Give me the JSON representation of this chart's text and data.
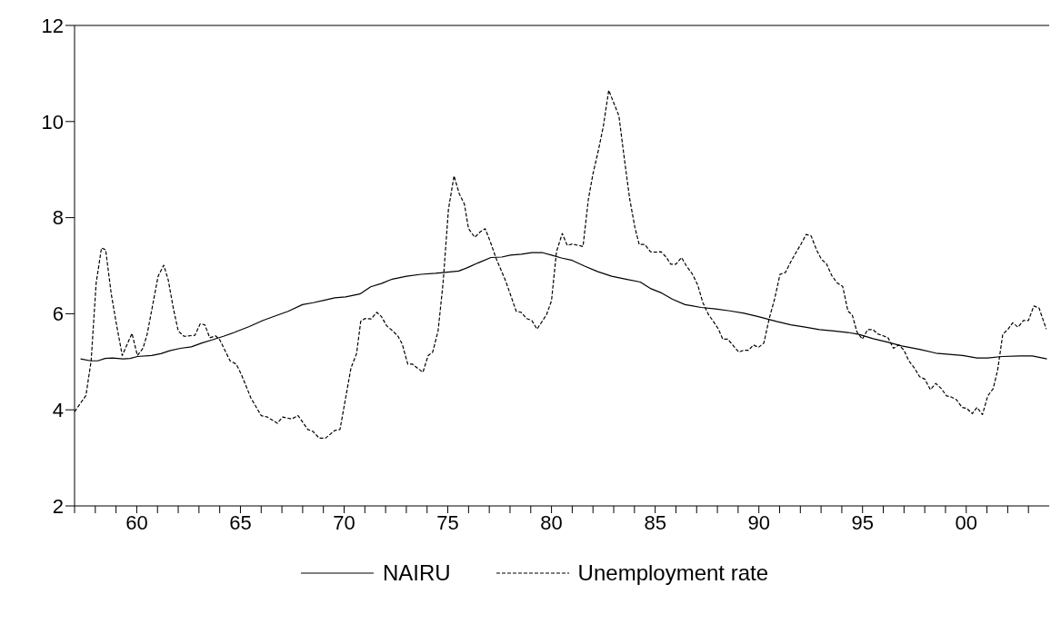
{
  "chart_data": {
    "type": "line",
    "xlim": [
      1957,
      2004
    ],
    "ylim": [
      2,
      12
    ],
    "yticks": [
      2,
      4,
      6,
      8,
      10,
      12
    ],
    "xticks": [
      {
        "value": 1957,
        "label": null
      },
      {
        "value": 1958,
        "label": null
      },
      {
        "value": 1959,
        "label": null
      },
      {
        "value": 1960,
        "label": "60"
      },
      {
        "value": 1961,
        "label": null
      },
      {
        "value": 1962,
        "label": null
      },
      {
        "value": 1963,
        "label": null
      },
      {
        "value": 1964,
        "label": null
      },
      {
        "value": 1965,
        "label": "65"
      },
      {
        "value": 1966,
        "label": null
      },
      {
        "value": 1967,
        "label": null
      },
      {
        "value": 1968,
        "label": null
      },
      {
        "value": 1969,
        "label": null
      },
      {
        "value": 1970,
        "label": "70"
      },
      {
        "value": 1971,
        "label": null
      },
      {
        "value": 1972,
        "label": null
      },
      {
        "value": 1973,
        "label": null
      },
      {
        "value": 1974,
        "label": null
      },
      {
        "value": 1975,
        "label": "75"
      },
      {
        "value": 1976,
        "label": null
      },
      {
        "value": 1977,
        "label": null
      },
      {
        "value": 1978,
        "label": null
      },
      {
        "value": 1979,
        "label": null
      },
      {
        "value": 1980,
        "label": "80"
      },
      {
        "value": 1981,
        "label": null
      },
      {
        "value": 1982,
        "label": null
      },
      {
        "value": 1983,
        "label": null
      },
      {
        "value": 1984,
        "label": null
      },
      {
        "value": 1985,
        "label": "85"
      },
      {
        "value": 1986,
        "label": null
      },
      {
        "value": 1987,
        "label": null
      },
      {
        "value": 1988,
        "label": null
      },
      {
        "value": 1989,
        "label": null
      },
      {
        "value": 1990,
        "label": "90"
      },
      {
        "value": 1991,
        "label": null
      },
      {
        "value": 1992,
        "label": null
      },
      {
        "value": 1993,
        "label": null
      },
      {
        "value": 1994,
        "label": null
      },
      {
        "value": 1995,
        "label": "95"
      },
      {
        "value": 1996,
        "label": null
      },
      {
        "value": 1997,
        "label": null
      },
      {
        "value": 1998,
        "label": null
      },
      {
        "value": 1999,
        "label": null
      },
      {
        "value": 2000,
        "label": "00"
      },
      {
        "value": 2001,
        "label": null
      },
      {
        "value": 2002,
        "label": null
      },
      {
        "value": 2003,
        "label": null
      }
    ],
    "legend": "bottom",
    "marker": "none",
    "series": [
      {
        "name": "NAIRU",
        "color": "#000000",
        "line_style": "solid",
        "x": [
          1957.29,
          1957.78,
          1958.12,
          1958.47,
          1958.82,
          1959.34,
          1959.68,
          1960.03,
          1960.72,
          1961.16,
          1961.59,
          1962.1,
          1962.63,
          1963.14,
          1963.66,
          1964.18,
          1964.7,
          1965.4,
          1966.09,
          1966.78,
          1967.3,
          1967.99,
          1968.51,
          1969.03,
          1969.55,
          1970.07,
          1970.76,
          1971.28,
          1971.8,
          1972.32,
          1973.01,
          1973.71,
          1974.4,
          1975.1,
          1975.53,
          1975.95,
          1976.47,
          1977.08,
          1977.6,
          1978.02,
          1978.54,
          1979.06,
          1979.58,
          1980.0,
          1980.48,
          1981.0,
          1981.6,
          1982.21,
          1982.9,
          1983.59,
          1984.28,
          1984.8,
          1985.32,
          1985.84,
          1986.44,
          1987.22,
          1987.91,
          1988.6,
          1989.29,
          1989.98,
          1990.85,
          1991.54,
          1992.23,
          1992.92,
          1993.61,
          1994.3,
          1994.82,
          1995.51,
          1996.2,
          1996.89,
          1997.75,
          1998.53,
          1999.31,
          1999.83,
          2000.52,
          2001.04,
          2001.73,
          2002.59,
          2003.19,
          2003.89
        ],
        "values": [
          5.06,
          5.02,
          5.02,
          5.07,
          5.08,
          5.06,
          5.07,
          5.11,
          5.13,
          5.17,
          5.23,
          5.28,
          5.31,
          5.39,
          5.46,
          5.53,
          5.61,
          5.73,
          5.86,
          5.97,
          6.05,
          6.19,
          6.23,
          6.28,
          6.33,
          6.35,
          6.41,
          6.56,
          6.63,
          6.72,
          6.78,
          6.82,
          6.84,
          6.87,
          6.89,
          6.96,
          7.06,
          7.17,
          7.18,
          7.22,
          7.24,
          7.27,
          7.27,
          7.22,
          7.16,
          7.11,
          6.99,
          6.88,
          6.78,
          6.72,
          6.66,
          6.52,
          6.43,
          6.3,
          6.19,
          6.13,
          6.1,
          6.06,
          6.01,
          5.94,
          5.84,
          5.77,
          5.72,
          5.67,
          5.64,
          5.61,
          5.57,
          5.48,
          5.41,
          5.33,
          5.26,
          5.18,
          5.15,
          5.13,
          5.08,
          5.08,
          5.11,
          5.12,
          5.12,
          5.06
        ]
      },
      {
        "name": "Unemployment rate",
        "color": "#000000",
        "line_style": "dashed",
        "x": [
          1957.0,
          1957.55,
          1957.8,
          1958.04,
          1958.3,
          1958.5,
          1958.77,
          1959.0,
          1959.3,
          1959.77,
          1960.03,
          1960.3,
          1960.5,
          1961.03,
          1961.3,
          1961.52,
          1961.76,
          1962.0,
          1962.28,
          1962.8,
          1963.06,
          1963.28,
          1963.52,
          1963.8,
          1964.0,
          1964.5,
          1964.8,
          1965.05,
          1965.5,
          1966.0,
          1966.3,
          1966.78,
          1967.04,
          1967.47,
          1967.78,
          1968.25,
          1968.5,
          1968.8,
          1969.1,
          1969.55,
          1969.8,
          1970.33,
          1970.6,
          1970.8,
          1971.0,
          1971.3,
          1971.57,
          1971.8,
          1972.05,
          1972.35,
          1972.6,
          1972.8,
          1973.07,
          1973.3,
          1973.8,
          1974.05,
          1974.27,
          1974.53,
          1974.77,
          1975.03,
          1975.3,
          1975.55,
          1975.8,
          1976.0,
          1976.3,
          1976.55,
          1976.8,
          1977.04,
          1977.33,
          1977.8,
          1978.3,
          1978.54,
          1978.8,
          1979.05,
          1979.3,
          1979.58,
          1979.76,
          1980.0,
          1980.24,
          1980.52,
          1980.76,
          1981.0,
          1981.52,
          1981.78,
          1982.0,
          1982.25,
          1982.5,
          1982.76,
          1983.02,
          1983.25,
          1983.5,
          1983.77,
          1984.02,
          1984.23,
          1984.5,
          1984.77,
          1985.0,
          1985.28,
          1985.53,
          1985.75,
          1986.0,
          1986.27,
          1986.5,
          1986.8,
          1987.05,
          1987.3,
          1987.56,
          1987.82,
          1988.05,
          1988.26,
          1988.5,
          1988.74,
          1989.03,
          1989.26,
          1989.5,
          1989.74,
          1989.98,
          1990.24,
          1990.5,
          1990.76,
          1991.02,
          1991.28,
          1991.54,
          1991.8,
          1992.02,
          1992.28,
          1992.52,
          1992.78,
          1993.02,
          1993.26,
          1993.52,
          1993.78,
          1994.04,
          1994.3,
          1994.5,
          1994.73,
          1994.99,
          1995.25,
          1995.5,
          1995.73,
          1996.0,
          1996.23,
          1996.49,
          1996.75,
          1997.0,
          1997.23,
          1997.5,
          1997.75,
          1998.0,
          1998.27,
          1998.53,
          1998.8,
          1999.05,
          1999.27,
          1999.53,
          1999.8,
          2000.03,
          2000.29,
          2000.52,
          2000.78,
          2001.04,
          2001.3,
          2001.52,
          2001.76,
          2002.02,
          2002.24,
          2002.5,
          2002.76,
          2003.0,
          2003.26,
          2003.51,
          2003.86
        ],
        "values": [
          3.96,
          4.3,
          5.02,
          6.63,
          7.37,
          7.33,
          6.41,
          5.83,
          5.13,
          5.59,
          5.13,
          5.28,
          5.57,
          6.78,
          7.01,
          6.7,
          6.12,
          5.64,
          5.53,
          5.55,
          5.79,
          5.77,
          5.5,
          5.54,
          5.46,
          5.02,
          4.95,
          4.73,
          4.25,
          3.88,
          3.85,
          3.72,
          3.85,
          3.81,
          3.88,
          3.59,
          3.55,
          3.41,
          3.41,
          3.57,
          3.59,
          4.87,
          5.17,
          5.84,
          5.9,
          5.89,
          6.03,
          5.94,
          5.75,
          5.64,
          5.53,
          5.37,
          4.95,
          4.95,
          4.78,
          5.13,
          5.2,
          5.64,
          6.63,
          8.17,
          8.87,
          8.5,
          8.28,
          7.77,
          7.59,
          7.7,
          7.77,
          7.51,
          7.15,
          6.67,
          6.05,
          6.03,
          5.9,
          5.86,
          5.68,
          5.86,
          5.98,
          6.27,
          7.29,
          7.67,
          7.42,
          7.45,
          7.4,
          8.39,
          8.91,
          9.38,
          9.9,
          10.65,
          10.37,
          10.12,
          9.27,
          8.39,
          7.8,
          7.44,
          7.44,
          7.29,
          7.28,
          7.29,
          7.18,
          7.03,
          7.03,
          7.17,
          7.0,
          6.82,
          6.6,
          6.23,
          5.99,
          5.83,
          5.68,
          5.47,
          5.47,
          5.35,
          5.2,
          5.24,
          5.24,
          5.35,
          5.3,
          5.39,
          5.9,
          6.31,
          6.82,
          6.86,
          7.08,
          7.28,
          7.44,
          7.65,
          7.62,
          7.33,
          7.13,
          7.04,
          6.79,
          6.64,
          6.57,
          6.05,
          5.98,
          5.62,
          5.47,
          5.67,
          5.67,
          5.58,
          5.54,
          5.5,
          5.28,
          5.35,
          5.24,
          5.02,
          4.87,
          4.69,
          4.64,
          4.42,
          4.55,
          4.44,
          4.29,
          4.27,
          4.21,
          4.05,
          4.03,
          3.92,
          4.05,
          3.9,
          4.29,
          4.44,
          4.84,
          5.57,
          5.68,
          5.81,
          5.72,
          5.86,
          5.86,
          6.16,
          6.12,
          5.68
        ]
      }
    ]
  }
}
